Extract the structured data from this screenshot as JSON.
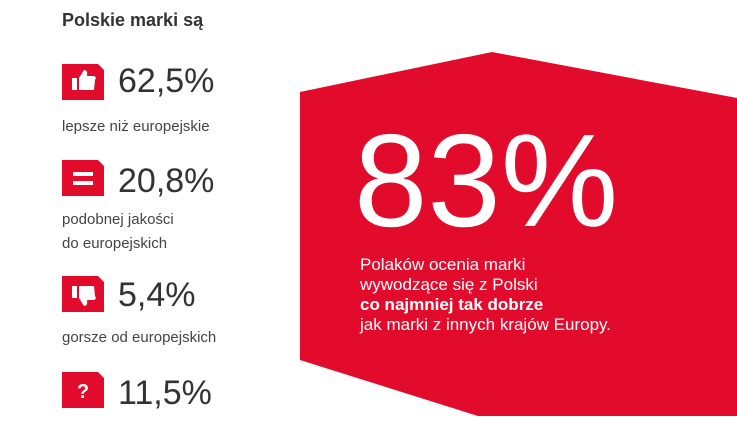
{
  "header": {
    "title": "Polskie marki są"
  },
  "items": [
    {
      "value": "62,5%",
      "label": [
        "lepsze niż europejskie"
      ]
    },
    {
      "value": "20,8%",
      "label": [
        "podobnej jakości",
        "do europejskich"
      ]
    },
    {
      "value": "5,4%",
      "label": [
        "gorsze od europejskich"
      ]
    },
    {
      "value": "11,5%",
      "icon_text": "?",
      "label": []
    }
  ],
  "highlight": {
    "value": "83%",
    "lines": [
      "Polaków ocenia marki",
      "wywodzące się z Polski",
      "co najmniej tak dobrze",
      "jak marki z innych krajów Europy."
    ]
  }
}
